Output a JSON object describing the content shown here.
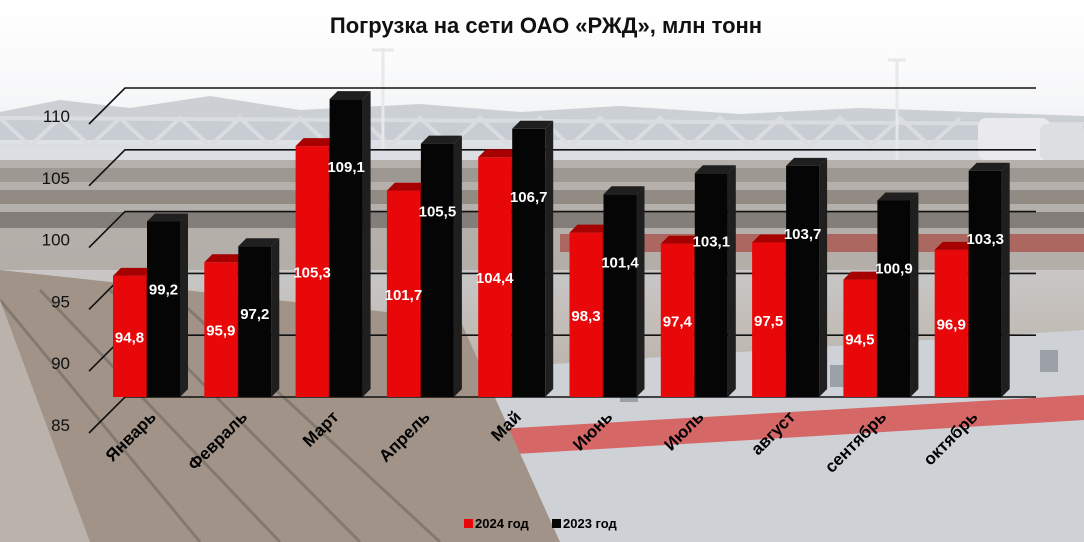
{
  "chart_data": {
    "type": "bar",
    "title": "Погрузка на сети ОАО «РЖД», млн тонн",
    "xlabel": "",
    "ylabel": "",
    "ylim": [
      85,
      110
    ],
    "yticks": [
      "85",
      "90",
      "95",
      "100",
      "105",
      "110"
    ],
    "categories": [
      "Январь",
      "Февраль",
      "Март",
      "Апрель",
      "Май",
      "Июнь",
      "Июль",
      "август",
      "сентябрь",
      "октябрь"
    ],
    "series": [
      {
        "name": "2024 год",
        "color": "#e8080a",
        "values": [
          94.8,
          95.9,
          105.3,
          101.7,
          104.4,
          98.3,
          97.4,
          97.5,
          94.5,
          96.9
        ],
        "labels": [
          "94,8",
          "95,9",
          "105,3",
          "101,7",
          "104,4",
          "98,3",
          "97,4",
          "97,5",
          "94,5",
          "96,9"
        ]
      },
      {
        "name": "2023 год",
        "color": "#050505",
        "values": [
          99.2,
          97.2,
          109.1,
          105.5,
          106.7,
          101.4,
          103.1,
          103.7,
          100.9,
          103.3
        ],
        "labels": [
          "99,2",
          "97,2",
          "109,1",
          "105,5",
          "106,7",
          "101,4",
          "103,1",
          "103,7",
          "100,9",
          "103,3"
        ]
      }
    ],
    "legend_position": "bottom-center",
    "grid": true
  }
}
